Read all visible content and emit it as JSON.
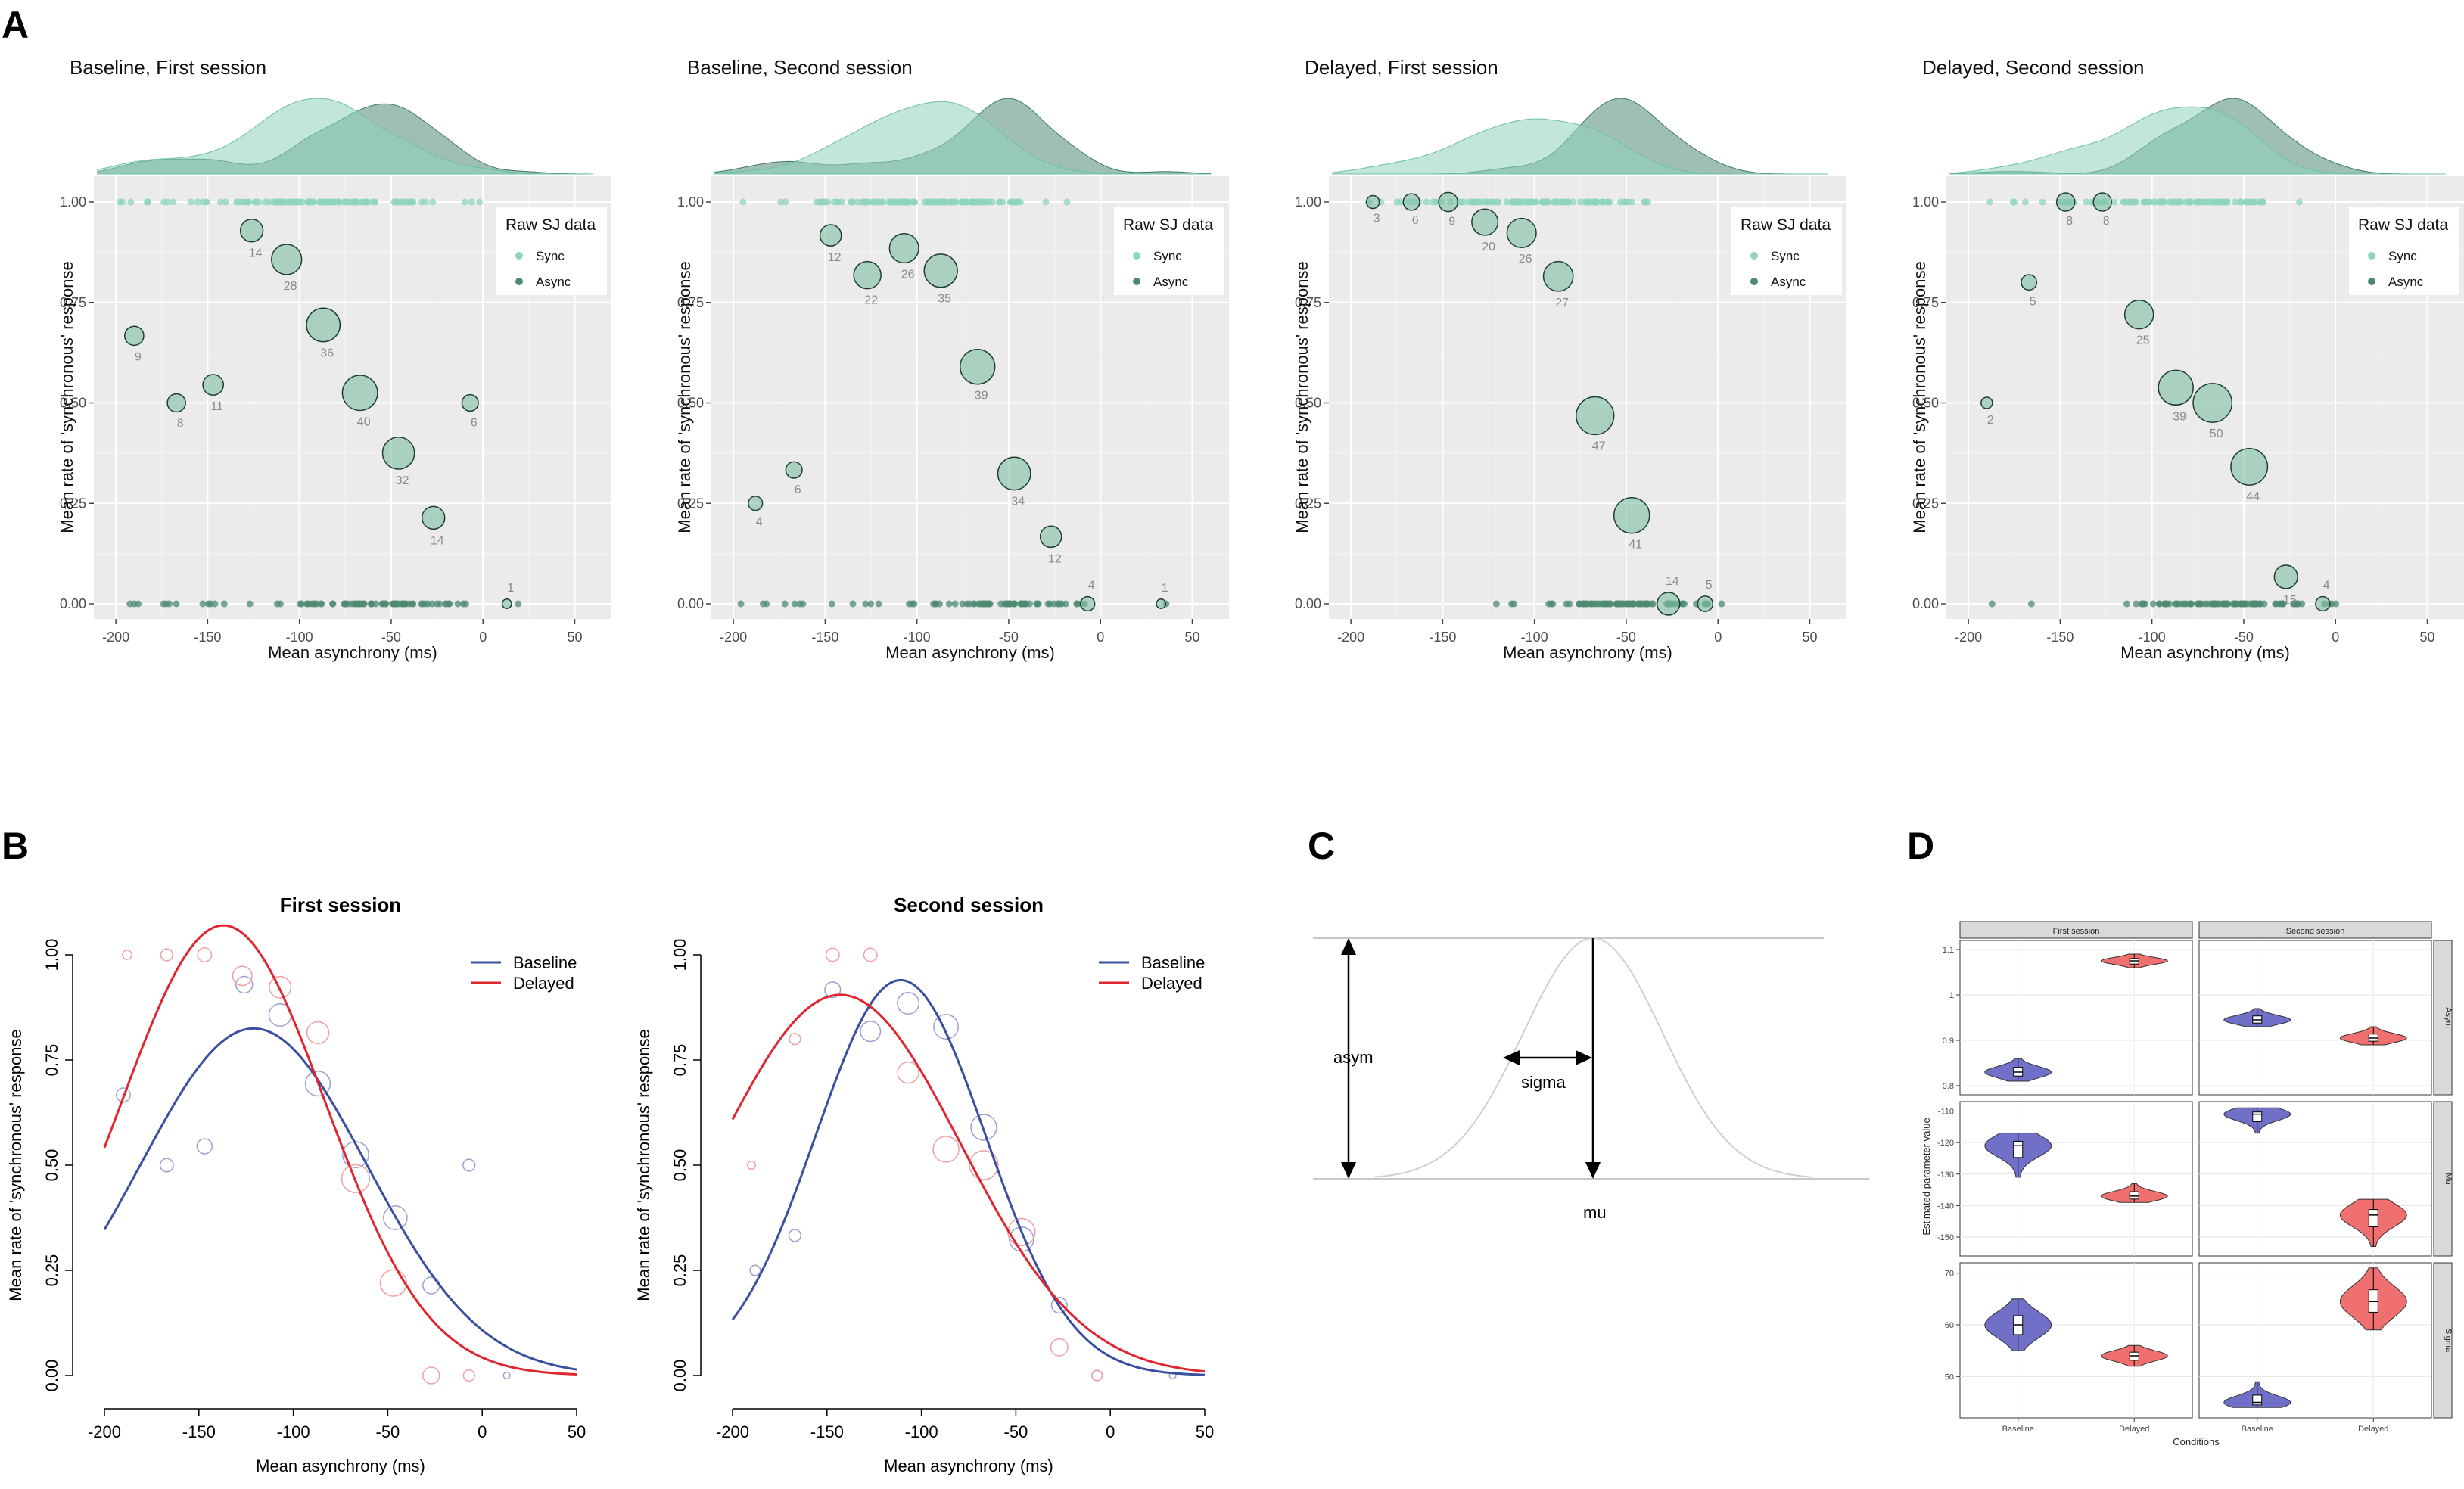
{
  "panel_labels": {
    "A": "A",
    "B": "B",
    "C": "C",
    "D": "D"
  },
  "panelA": {
    "ylabel": "Mean rate of 'synchronous' response",
    "xlabel": "Mean asynchrony (ms)",
    "legend_title": "Raw SJ data",
    "legend_items": [
      "Sync",
      "Async"
    ],
    "xticks": [
      "-200",
      "-150",
      "-100",
      "-50",
      "0",
      "50"
    ],
    "yticks": [
      "0.00",
      "0.25",
      "0.50",
      "0.75",
      "1.00"
    ]
  },
  "panelB": {
    "ylabel": "Mean rate of 'synchronous' response",
    "xlabel": "Mean asynchrony (ms)",
    "legend_items": [
      "Baseline",
      "Delayed"
    ],
    "xticks": [
      "-200",
      "-150",
      "-100",
      "-50",
      "0",
      "50"
    ],
    "yticks": [
      "0.00",
      "0.25",
      "0.50",
      "0.75",
      "1.00"
    ]
  },
  "panelC": {
    "label_asym": "asym",
    "label_sigma": "sigma",
    "label_mu": "mu"
  },
  "panelD": {
    "facet_cols": [
      "First session",
      "Second session"
    ],
    "facet_rows": [
      "Asym",
      "Mu",
      "Sigma"
    ],
    "ylabel": "Estimated parameter value",
    "xlabel": "Conditions",
    "x_categories": [
      "Baseline",
      "Delayed"
    ]
  },
  "colors": {
    "sync": "#8fd4bc",
    "async": "#4e8a72",
    "baseline": "#3a4fa0",
    "delayed": "#e0262e",
    "violin_baseline": "#7070c8",
    "violin_delayed": "#f07070"
  },
  "chart_data": [
    {
      "type": "scatter",
      "panel": "A",
      "title": "Baseline, First session",
      "points": [
        {
          "x": -190,
          "y": 0.667,
          "n": 9
        },
        {
          "x": -167,
          "y": 0.5,
          "n": 8
        },
        {
          "x": -147,
          "y": 0.545,
          "n": 11
        },
        {
          "x": -126,
          "y": 0.929,
          "n": 14
        },
        {
          "x": -107,
          "y": 0.857,
          "n": 28
        },
        {
          "x": -87,
          "y": 0.694,
          "n": 36
        },
        {
          "x": -67,
          "y": 0.525,
          "n": 40
        },
        {
          "x": -46,
          "y": 0.375,
          "n": 32
        },
        {
          "x": -27,
          "y": 0.214,
          "n": 14
        },
        {
          "x": -7,
          "y": 0.5,
          "n": 6
        },
        {
          "x": 13,
          "y": 0.0,
          "n": 1
        }
      ]
    },
    {
      "type": "scatter",
      "panel": "A",
      "title": "Baseline, Second session",
      "points": [
        {
          "x": -188,
          "y": 0.25,
          "n": 4
        },
        {
          "x": -167,
          "y": 0.333,
          "n": 6
        },
        {
          "x": -147,
          "y": 0.917,
          "n": 12
        },
        {
          "x": -127,
          "y": 0.818,
          "n": 22
        },
        {
          "x": -107,
          "y": 0.885,
          "n": 26
        },
        {
          "x": -87,
          "y": 0.829,
          "n": 35
        },
        {
          "x": -67,
          "y": 0.59,
          "n": 39
        },
        {
          "x": -47,
          "y": 0.324,
          "n": 34
        },
        {
          "x": -27,
          "y": 0.167,
          "n": 12
        },
        {
          "x": -7,
          "y": 0.0,
          "n": 4
        },
        {
          "x": 33,
          "y": 0.0,
          "n": 1
        }
      ]
    },
    {
      "type": "scatter",
      "panel": "A",
      "title": "Delayed, First session",
      "points": [
        {
          "x": -188,
          "y": 1.0,
          "n": 3
        },
        {
          "x": -167,
          "y": 1.0,
          "n": 6
        },
        {
          "x": -147,
          "y": 1.0,
          "n": 9
        },
        {
          "x": -127,
          "y": 0.95,
          "n": 20
        },
        {
          "x": -107,
          "y": 0.923,
          "n": 26
        },
        {
          "x": -87,
          "y": 0.815,
          "n": 27
        },
        {
          "x": -67,
          "y": 0.468,
          "n": 47
        },
        {
          "x": -47,
          "y": 0.22,
          "n": 41
        },
        {
          "x": -27,
          "y": 0.0,
          "n": 14
        },
        {
          "x": -7,
          "y": 0.0,
          "n": 5
        }
      ]
    },
    {
      "type": "scatter",
      "panel": "A",
      "title": "Delayed, Second session",
      "points": [
        {
          "x": -190,
          "y": 0.5,
          "n": 2
        },
        {
          "x": -167,
          "y": 0.8,
          "n": 5
        },
        {
          "x": -147,
          "y": 1.0,
          "n": 8
        },
        {
          "x": -127,
          "y": 1.0,
          "n": 8
        },
        {
          "x": -107,
          "y": 0.72,
          "n": 25
        },
        {
          "x": -87,
          "y": 0.538,
          "n": 39
        },
        {
          "x": -67,
          "y": 0.5,
          "n": 50
        },
        {
          "x": -47,
          "y": 0.341,
          "n": 44
        },
        {
          "x": -27,
          "y": 0.067,
          "n": 15
        },
        {
          "x": -7,
          "y": 0.0,
          "n": 4
        }
      ]
    },
    {
      "type": "line",
      "panel": "B",
      "title": "First session",
      "xlim": [
        -200,
        50
      ],
      "ylim": [
        0,
        1
      ],
      "series": [
        {
          "name": "Baseline",
          "asym": 0.825,
          "mu": -121,
          "sigma": 60
        },
        {
          "name": "Delayed",
          "asym": 1.07,
          "mu": -137,
          "sigma": 54
        }
      ]
    },
    {
      "type": "line",
      "panel": "B",
      "title": "Second session",
      "xlim": [
        -200,
        50
      ],
      "ylim": [
        0,
        1
      ],
      "series": [
        {
          "name": "Baseline",
          "asym": 0.94,
          "mu": -111,
          "sigma": 45
        },
        {
          "name": "Delayed",
          "asym": 0.905,
          "mu": -143,
          "sigma": 64
        }
      ]
    },
    {
      "type": "violin",
      "panel": "D",
      "facets": [
        {
          "row": "Asym",
          "col": "First session",
          "ylim": [
            0.78,
            1.12
          ],
          "yticks": [
            0.8,
            0.9,
            1.0,
            1.1
          ],
          "baseline": [
            0.81,
            0.83,
            0.86
          ],
          "delayed": [
            1.06,
            1.075,
            1.09
          ]
        },
        {
          "row": "Asym",
          "col": "Second session",
          "ylim": [
            0.78,
            1.12
          ],
          "yticks": [
            0.8,
            0.9,
            1.0,
            1.1
          ],
          "baseline": [
            0.93,
            0.945,
            0.97
          ],
          "delayed": [
            0.89,
            0.905,
            0.93
          ]
        },
        {
          "row": "Mu",
          "col": "First session",
          "ylim": [
            -156,
            -107
          ],
          "yticks": [
            -150,
            -140,
            -130,
            -120,
            -110
          ],
          "baseline": [
            -131,
            -121,
            -117
          ],
          "delayed": [
            -139,
            -137,
            -133
          ]
        },
        {
          "row": "Mu",
          "col": "Second session",
          "ylim": [
            -156,
            -107
          ],
          "yticks": [
            -150,
            -140,
            -130,
            -120,
            -110
          ],
          "baseline": [
            -117,
            -111,
            -109
          ],
          "delayed": [
            -153,
            -143,
            -138
          ]
        },
        {
          "row": "Sigma",
          "col": "First session",
          "ylim": [
            42,
            72
          ],
          "yticks": [
            50,
            60,
            70
          ],
          "baseline": [
            55,
            60,
            65
          ],
          "delayed": [
            52,
            54,
            56
          ]
        },
        {
          "row": "Sigma",
          "col": "Second session",
          "ylim": [
            42,
            72
          ],
          "yticks": [
            50,
            60,
            70
          ],
          "baseline": [
            44,
            45,
            49
          ],
          "delayed": [
            59,
            64.5,
            71
          ]
        }
      ]
    }
  ]
}
